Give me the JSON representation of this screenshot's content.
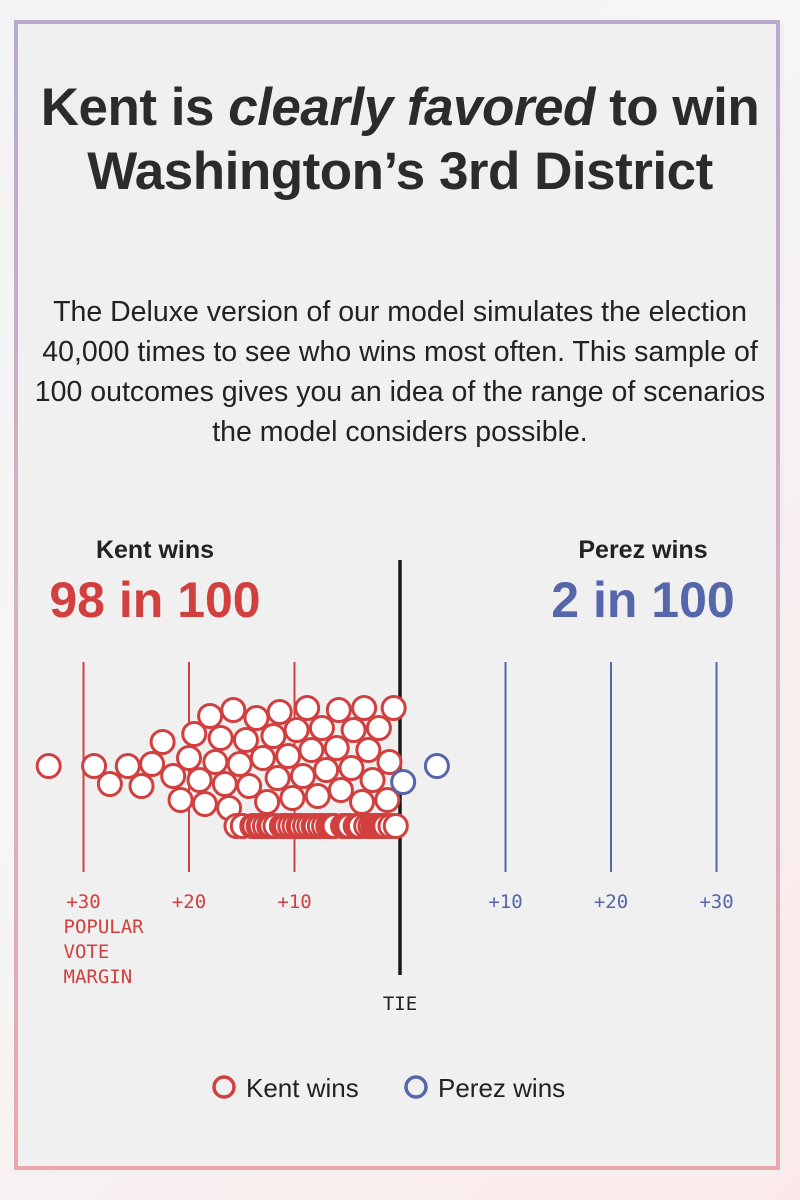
{
  "title": {
    "before": "Kent is ",
    "emphasis": "clearly favored",
    "after": " to win Washington’s 3rd District"
  },
  "subtitle": "The Deluxe version of our model simulates the election 40,000 times to see who wins most often. This sample of 100 outcomes gives you an idea of the range of scenarios the model considers possible.",
  "colors": {
    "kent": "#d13f3f",
    "perez": "#5566aa",
    "tie": "#1a1a1a"
  },
  "chart_data": {
    "type": "scatter",
    "subtype": "beeswarm",
    "xlabel": "POPULAR VOTE MARGIN",
    "tie_label": "TIE",
    "x_range": [
      -35,
      35
    ],
    "kent_ticks": [
      "+30",
      "+20",
      "+10"
    ],
    "perez_ticks": [
      "+10",
      "+20",
      "+30"
    ],
    "tick_values": [
      -30,
      -20,
      -10,
      10,
      20,
      30
    ],
    "tie_value": 0,
    "totals": [
      {
        "candidate": "Kent",
        "label": "Kent wins",
        "count_text": "98 in 100",
        "count": 98
      },
      {
        "candidate": "Perez",
        "label": "Perez wins",
        "count_text": "2 in 100",
        "count": 2
      }
    ],
    "legend": [
      {
        "label": "Kent wins",
        "color": "#d13f3f"
      },
      {
        "label": "Perez wins",
        "color": "#5566aa"
      }
    ],
    "series": [
      {
        "name": "Kent wins",
        "values": [
          -33.3,
          -29.0,
          -27.5,
          -25.8,
          -24.5,
          -23.5,
          -22.5,
          -21.5,
          -20.8,
          -20.0,
          -19.5,
          -19.0,
          -18.5,
          -18.0,
          -17.5,
          -17.0,
          -16.6,
          -16.2,
          -15.8,
          -15.5,
          -15.2,
          -14.9,
          -14.6,
          -14.3,
          -14.0,
          -13.8,
          -13.6,
          -13.4,
          -13.2,
          -13.0,
          -12.8,
          -12.6,
          -12.4,
          -12.2,
          -12.0,
          -11.8,
          -11.6,
          -11.4,
          -11.2,
          -11.0,
          -10.8,
          -10.6,
          -10.4,
          -10.2,
          -10.0,
          -9.8,
          -9.6,
          -9.4,
          -9.2,
          -9.0,
          -8.8,
          -8.6,
          -8.4,
          -8.2,
          -8.0,
          -7.8,
          -7.6,
          -7.4,
          -7.2,
          -7.0,
          -6.8,
          -6.6,
          -6.4,
          -6.2,
          -6.0,
          -5.8,
          -5.6,
          -5.4,
          -5.2,
          -5.0,
          -4.8,
          -4.6,
          -4.4,
          -4.2,
          -4.0,
          -3.8,
          -3.6,
          -3.4,
          -3.2,
          -3.0,
          -2.8,
          -2.6,
          -2.4,
          -2.2,
          -2.0,
          -1.8,
          -1.6,
          -1.4,
          -1.2,
          -1.0,
          -3.9,
          -2.5,
          -1.5,
          -0.9,
          -0.6,
          -5.0,
          -2.0,
          -0.4
        ]
      },
      {
        "name": "Perez wins",
        "values": [
          0.3,
          3.5
        ]
      }
    ]
  }
}
